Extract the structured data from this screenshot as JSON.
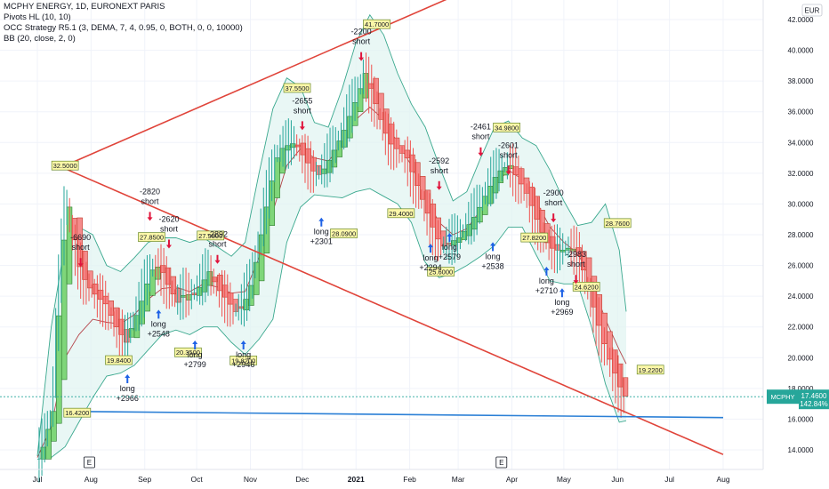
{
  "chart_data": {
    "type": "candlestick",
    "legend": [
      "MCPHY ENERGY, 1D, EURONEXT PARIS",
      "Pivots HL (10, 10)",
      "OCC Strategy R5.1 (3, DEMA, 7, 4, 0.95, 0, BOTH, 0, 0, 10000)",
      "BB (20, close, 2, 0)"
    ],
    "currency": "EUR",
    "ylim": [
      13,
      43
    ],
    "y_ticks": [
      "14.0000",
      "16.0000",
      "18.0000",
      "20.0000",
      "22.0000",
      "24.0000",
      "26.0000",
      "28.0000",
      "30.0000",
      "32.0000",
      "34.0000",
      "36.0000",
      "38.0000",
      "40.0000",
      "42.0000"
    ],
    "x_ticks": [
      "Jul",
      "Aug",
      "Sep",
      "Oct",
      "Nov",
      "Dec",
      "2021",
      "Feb",
      "Mar",
      "Apr",
      "May",
      "Jun",
      "Jul",
      "Aug"
    ],
    "x_tick_days": [
      0,
      31,
      62,
      92,
      123,
      153,
      184,
      215,
      243,
      274,
      304,
      335,
      365,
      396
    ],
    "last_day": 385,
    "price_badge": {
      "symbol": "MCPHY",
      "price": "17.4600",
      "change": "142.84%"
    },
    "pivot_labels": [
      {
        "text": "32.5000",
        "day": 16,
        "value": 32.5
      },
      {
        "text": "16.4200",
        "day": 23,
        "value": 16.42
      },
      {
        "text": "19.8400",
        "day": 47,
        "value": 19.84
      },
      {
        "text": "27.8500",
        "day": 66,
        "value": 27.85
      },
      {
        "text": "27.9500",
        "day": 100,
        "value": 27.95
      },
      {
        "text": "20.3500",
        "day": 87,
        "value": 20.35
      },
      {
        "text": "19.8200",
        "day": 119,
        "value": 19.82
      },
      {
        "text": "37.5500",
        "day": 150,
        "value": 37.55
      },
      {
        "text": "28.0900",
        "day": 177,
        "value": 28.09
      },
      {
        "text": "41.7000",
        "day": 196,
        "value": 41.7
      },
      {
        "text": "29.4000",
        "day": 210,
        "value": 29.4
      },
      {
        "text": "25.6000",
        "day": 233,
        "value": 25.6
      },
      {
        "text": "34.9800",
        "day": 271,
        "value": 34.98
      },
      {
        "text": "27.8200",
        "day": 287,
        "value": 27.82
      },
      {
        "text": "24.6200",
        "day": 317,
        "value": 24.62
      },
      {
        "text": "28.7600",
        "day": 335,
        "value": 28.76
      },
      {
        "text": "19.2200",
        "day": 354,
        "value": 19.22
      }
    ],
    "trade_signals": [
      {
        "side": "short",
        "pnl": "-6690",
        "day": 25,
        "value": 26.6
      },
      {
        "side": "long",
        "pnl": "+2966",
        "day": 52,
        "value": 18.8
      },
      {
        "side": "long",
        "pnl": "+2548",
        "day": 70,
        "value": 23.0
      },
      {
        "side": "short",
        "pnl": "-2820",
        "day": 65,
        "value": 29.6
      },
      {
        "side": "short",
        "pnl": "-2620",
        "day": 76,
        "value": 27.8
      },
      {
        "side": "long",
        "pnl": "+2799",
        "day": 91,
        "value": 21.0
      },
      {
        "side": "short",
        "pnl": "-2892",
        "day": 104,
        "value": 26.8
      },
      {
        "side": "long",
        "pnl": "+2946",
        "day": 119,
        "value": 21.0
      },
      {
        "side": "short",
        "pnl": "-2655",
        "day": 153,
        "value": 35.5
      },
      {
        "side": "long",
        "pnl": "+2301",
        "day": 164,
        "value": 29.0
      },
      {
        "side": "short",
        "pnl": "-2200",
        "day": 187,
        "value": 40.0
      },
      {
        "side": "short",
        "pnl": "-2592",
        "day": 232,
        "value": 31.6
      },
      {
        "side": "long",
        "pnl": "+2294",
        "day": 227,
        "value": 27.3
      },
      {
        "side": "long",
        "pnl": "+2579",
        "day": 238,
        "value": 28.0
      },
      {
        "side": "long",
        "pnl": "+2538",
        "day": 263,
        "value": 27.4
      },
      {
        "side": "short",
        "pnl": "-2461",
        "day": 256,
        "value": 33.8
      },
      {
        "side": "short",
        "pnl": "-2601",
        "day": 272,
        "value": 32.6
      },
      {
        "side": "long",
        "pnl": "+2710",
        "day": 294,
        "value": 25.8
      },
      {
        "side": "long",
        "pnl": "+2969",
        "day": 303,
        "value": 24.4
      },
      {
        "side": "short",
        "pnl": "-2900",
        "day": 298,
        "value": 29.5
      },
      {
        "side": "short",
        "pnl": "-2983",
        "day": 311,
        "value": 25.5
      }
    ],
    "event_markers": [
      {
        "text": "E",
        "day": 30
      },
      {
        "text": "E",
        "day": 268
      }
    ],
    "trendlines": [
      {
        "name": "upper-resistance",
        "color": "#e0443a",
        "points": [
          [
            16,
            32.5
          ],
          [
            240,
            43.5
          ]
        ]
      },
      {
        "name": "falling-resistance",
        "color": "#e0443a",
        "points": [
          [
            16,
            32.3
          ],
          [
            396,
            13.7
          ]
        ]
      },
      {
        "name": "support",
        "color": "#2a7fd6",
        "points": [
          [
            24,
            16.5
          ],
          [
            396,
            16.1
          ]
        ]
      }
    ],
    "price_path": [
      [
        0,
        13.4
      ],
      [
        8,
        16.5
      ],
      [
        12,
        24.8
      ],
      [
        16,
        30.5
      ],
      [
        19,
        28.4
      ],
      [
        22,
        26.2
      ],
      [
        27,
        24.8
      ],
      [
        33,
        24.0
      ],
      [
        38,
        23.5
      ],
      [
        44,
        22.0
      ],
      [
        50,
        21.0
      ],
      [
        54,
        22.2
      ],
      [
        58,
        23.3
      ],
      [
        62,
        24.8
      ],
      [
        66,
        26.0
      ],
      [
        70,
        25.8
      ],
      [
        75,
        24.5
      ],
      [
        80,
        23.6
      ],
      [
        84,
        24.2
      ],
      [
        88,
        24.0
      ],
      [
        93,
        24.7
      ],
      [
        98,
        25.6
      ],
      [
        103,
        24.5
      ],
      [
        108,
        23.8
      ],
      [
        113,
        23.0
      ],
      [
        118,
        23.5
      ],
      [
        123,
        25.0
      ],
      [
        128,
        28.0
      ],
      [
        133,
        31.0
      ],
      [
        138,
        33.5
      ],
      [
        143,
        33.8
      ],
      [
        148,
        34.0
      ],
      [
        152,
        33.2
      ],
      [
        156,
        32.5
      ],
      [
        160,
        31.8
      ],
      [
        165,
        32.4
      ],
      [
        170,
        33.5
      ],
      [
        175,
        34.5
      ],
      [
        180,
        36.0
      ],
      [
        185,
        37.5
      ],
      [
        188,
        38.5
      ],
      [
        192,
        37.2
      ],
      [
        197,
        35.5
      ],
      [
        202,
        34.0
      ],
      [
        207,
        33.5
      ],
      [
        212,
        33.0
      ],
      [
        217,
        31.5
      ],
      [
        222,
        30.0
      ],
      [
        227,
        28.5
      ],
      [
        232,
        27.2
      ],
      [
        237,
        27.5
      ],
      [
        242,
        27.8
      ],
      [
        247,
        28.5
      ],
      [
        252,
        29.3
      ],
      [
        257,
        30.5
      ],
      [
        262,
        31.6
      ],
      [
        267,
        32.3
      ],
      [
        272,
        32.5
      ],
      [
        277,
        31.5
      ],
      [
        282,
        30.5
      ],
      [
        287,
        29.0
      ],
      [
        292,
        27.6
      ],
      [
        297,
        27.0
      ],
      [
        302,
        27.0
      ],
      [
        307,
        27.2
      ],
      [
        312,
        26.5
      ],
      [
        317,
        24.5
      ],
      [
        322,
        22.5
      ],
      [
        327,
        20.5
      ],
      [
        332,
        19.0
      ],
      [
        337,
        17.5
      ],
      [
        340,
        17.46
      ]
    ],
    "bb_mid": [
      [
        0,
        13.5
      ],
      [
        8,
        15.5
      ],
      [
        16,
        20.0
      ],
      [
        24,
        21.5
      ],
      [
        32,
        22.5
      ],
      [
        40,
        22.3
      ],
      [
        48,
        22.2
      ],
      [
        56,
        22.8
      ],
      [
        64,
        23.8
      ],
      [
        72,
        24.5
      ],
      [
        80,
        24.6
      ],
      [
        88,
        24.3
      ],
      [
        96,
        24.8
      ],
      [
        104,
        24.6
      ],
      [
        112,
        24.2
      ],
      [
        120,
        24.3
      ],
      [
        128,
        26.5
      ],
      [
        136,
        29.5
      ],
      [
        144,
        32.5
      ],
      [
        152,
        33.6
      ],
      [
        160,
        33.0
      ],
      [
        168,
        32.8
      ],
      [
        176,
        33.8
      ],
      [
        184,
        35.5
      ],
      [
        192,
        36.3
      ],
      [
        200,
        35.5
      ],
      [
        208,
        34.0
      ],
      [
        216,
        32.5
      ],
      [
        224,
        30.5
      ],
      [
        232,
        28.8
      ],
      [
        240,
        28.0
      ],
      [
        248,
        28.4
      ],
      [
        256,
        29.6
      ],
      [
        264,
        31.2
      ],
      [
        272,
        32.2
      ],
      [
        280,
        31.6
      ],
      [
        288,
        30.2
      ],
      [
        296,
        28.5
      ],
      [
        304,
        27.5
      ],
      [
        312,
        26.8
      ],
      [
        320,
        25.0
      ],
      [
        328,
        22.5
      ],
      [
        336,
        20.5
      ],
      [
        340,
        19.6
      ]
    ],
    "bb_upper": [
      [
        0,
        13.6
      ],
      [
        8,
        22.0
      ],
      [
        16,
        27.5
      ],
      [
        24,
        28.5
      ],
      [
        32,
        28.0
      ],
      [
        40,
        26.0
      ],
      [
        48,
        25.6
      ],
      [
        56,
        26.5
      ],
      [
        64,
        27.5
      ],
      [
        72,
        27.8
      ],
      [
        80,
        27.8
      ],
      [
        88,
        27.5
      ],
      [
        96,
        27.8
      ],
      [
        104,
        27.2
      ],
      [
        112,
        26.6
      ],
      [
        120,
        27.5
      ],
      [
        128,
        32.0
      ],
      [
        136,
        36.2
      ],
      [
        144,
        38.2
      ],
      [
        152,
        37.6
      ],
      [
        160,
        35.3
      ],
      [
        168,
        35.0
      ],
      [
        176,
        37.5
      ],
      [
        184,
        40.5
      ],
      [
        192,
        42.3
      ],
      [
        200,
        41.0
      ],
      [
        208,
        38.5
      ],
      [
        216,
        36.5
      ],
      [
        224,
        35.0
      ],
      [
        232,
        32.5
      ],
      [
        240,
        30.2
      ],
      [
        248,
        30.8
      ],
      [
        256,
        33.0
      ],
      [
        264,
        35.0
      ],
      [
        272,
        35.4
      ],
      [
        280,
        34.3
      ],
      [
        288,
        33.8
      ],
      [
        296,
        32.2
      ],
      [
        304,
        30.2
      ],
      [
        312,
        28.6
      ],
      [
        320,
        28.8
      ],
      [
        328,
        30.0
      ],
      [
        336,
        27.0
      ],
      [
        340,
        23.0
      ]
    ],
    "bb_lower": [
      [
        0,
        13.4
      ],
      [
        8,
        13.5
      ],
      [
        16,
        14.2
      ],
      [
        24,
        15.8
      ],
      [
        32,
        17.4
      ],
      [
        40,
        18.8
      ],
      [
        48,
        19.0
      ],
      [
        56,
        19.5
      ],
      [
        64,
        20.5
      ],
      [
        72,
        21.5
      ],
      [
        80,
        21.8
      ],
      [
        88,
        21.5
      ],
      [
        96,
        22.0
      ],
      [
        104,
        22.0
      ],
      [
        112,
        21.0
      ],
      [
        120,
        20.2
      ],
      [
        128,
        21.2
      ],
      [
        136,
        22.5
      ],
      [
        144,
        27.5
      ],
      [
        152,
        29.8
      ],
      [
        160,
        30.6
      ],
      [
        168,
        30.5
      ],
      [
        176,
        30.4
      ],
      [
        184,
        30.8
      ],
      [
        192,
        31.0
      ],
      [
        200,
        30.5
      ],
      [
        208,
        30.0
      ],
      [
        216,
        28.8
      ],
      [
        224,
        26.2
      ],
      [
        232,
        25.2
      ],
      [
        240,
        25.5
      ],
      [
        248,
        26.0
      ],
      [
        256,
        26.6
      ],
      [
        264,
        27.3
      ],
      [
        272,
        28.5
      ],
      [
        280,
        28.5
      ],
      [
        288,
        26.7
      ],
      [
        296,
        25.0
      ],
      [
        304,
        24.8
      ],
      [
        312,
        24.8
      ],
      [
        320,
        22.0
      ],
      [
        328,
        18.3
      ],
      [
        336,
        15.8
      ],
      [
        340,
        15.9
      ]
    ]
  }
}
